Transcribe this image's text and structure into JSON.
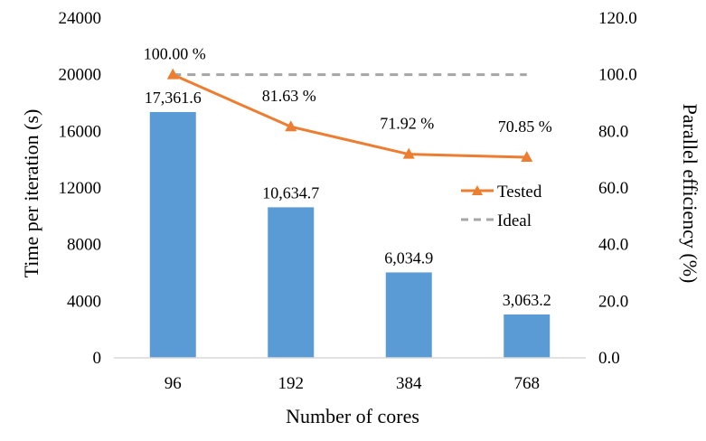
{
  "chart_data": {
    "type": "bar+line",
    "categories": [
      "96",
      "192",
      "384",
      "768"
    ],
    "bars": {
      "name": "Time per iteration",
      "values": [
        17361.6,
        10634.7,
        6034.9,
        3063.2
      ],
      "labels": [
        "17,361.6",
        "10,634.7",
        "6,034.9",
        "3,063.2"
      ],
      "color": "#5b9bd5"
    },
    "series": [
      {
        "name": "Tested",
        "values": [
          100.0,
          81.63,
          71.92,
          70.85
        ],
        "labels": [
          "100.00 %",
          "81.63 %",
          "71.92 %",
          "70.85 %"
        ],
        "color": "#ed7d31",
        "marker": "triangle"
      },
      {
        "name": "Ideal",
        "values": [
          100.0,
          100.0,
          100.0,
          100.0
        ],
        "color": "#a6a6a6",
        "style": "dashed"
      }
    ],
    "xlabel": "Number of cores",
    "ylabel_left": "Time per iteration (s)",
    "ylabel_right": "Parallel efficiency (%)",
    "ylim_left": [
      0,
      24000
    ],
    "ylim_right": [
      0,
      120
    ],
    "yticks_left": [
      "0",
      "4000",
      "8000",
      "12000",
      "16000",
      "20000",
      "24000"
    ],
    "yticks_right": [
      "0.0",
      "20.0",
      "40.0",
      "60.0",
      "80.0",
      "100.0",
      "120.0"
    ],
    "legend": {
      "position": "right-middle",
      "entries": [
        "Tested",
        "Ideal"
      ]
    }
  }
}
